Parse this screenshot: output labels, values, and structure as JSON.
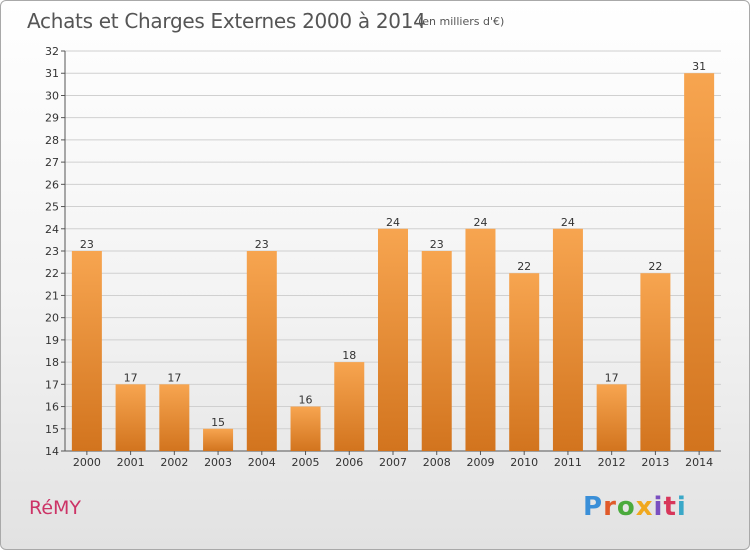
{
  "header": {
    "title": "Achats et Charges Externes 2000 à 2014",
    "subtitle": "(en milliers d'€)"
  },
  "footer": {
    "place": "RéMY",
    "logo_text": "Proxiti"
  },
  "colors": {
    "bar_light": "#f7a550",
    "bar_dark": "#d2741e",
    "grid": "#d0d0d0",
    "title": "#555555",
    "place": "#cc3366"
  },
  "chart_data": {
    "type": "bar",
    "title": "Achats et Charges Externes 2000 à 2014",
    "subtitle": "(en milliers d'€)",
    "xlabel": "",
    "ylabel": "",
    "categories": [
      "2000",
      "2001",
      "2002",
      "2003",
      "2004",
      "2005",
      "2006",
      "2007",
      "2008",
      "2009",
      "2010",
      "2011",
      "2012",
      "2013",
      "2014"
    ],
    "values": [
      23,
      17,
      17,
      15,
      23,
      16,
      18,
      24,
      23,
      24,
      22,
      24,
      17,
      22,
      31
    ],
    "ylim": [
      14,
      32
    ],
    "yticks": [
      14,
      15,
      16,
      17,
      18,
      19,
      20,
      21,
      22,
      23,
      24,
      25,
      26,
      27,
      28,
      29,
      30,
      31,
      32
    ],
    "grid": true,
    "legend": "none"
  }
}
